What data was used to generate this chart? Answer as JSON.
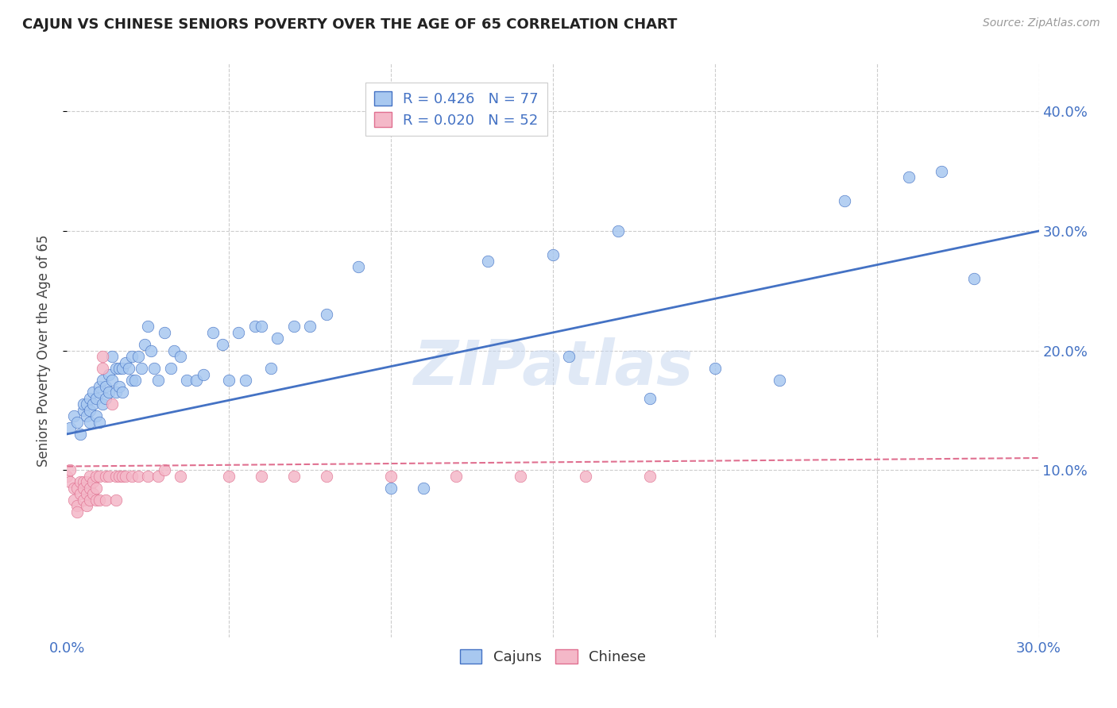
{
  "title": "CAJUN VS CHINESE SENIORS POVERTY OVER THE AGE OF 65 CORRELATION CHART",
  "source": "Source: ZipAtlas.com",
  "ylabel": "Seniors Poverty Over the Age of 65",
  "xlim": [
    0.0,
    0.3
  ],
  "ylim": [
    -0.04,
    0.44
  ],
  "cajun_R": 0.426,
  "cajun_N": 77,
  "chinese_R": 0.02,
  "chinese_N": 52,
  "cajun_color": "#a8c8f0",
  "chinese_color": "#f4b8c8",
  "cajun_line_color": "#4472c4",
  "chinese_line_color": "#e07090",
  "background_color": "#ffffff",
  "grid_color": "#cccccc",
  "watermark": "ZIPatlas",
  "watermark_color": "#c8d8f0",
  "cajun_line_start_y": 0.13,
  "cajun_line_end_y": 0.3,
  "chinese_line_start_y": 0.103,
  "chinese_line_end_y": 0.11,
  "cajun_x": [
    0.001,
    0.002,
    0.003,
    0.004,
    0.005,
    0.005,
    0.006,
    0.006,
    0.007,
    0.007,
    0.007,
    0.008,
    0.008,
    0.009,
    0.009,
    0.01,
    0.01,
    0.01,
    0.011,
    0.011,
    0.012,
    0.012,
    0.013,
    0.013,
    0.014,
    0.014,
    0.015,
    0.015,
    0.016,
    0.016,
    0.017,
    0.017,
    0.018,
    0.019,
    0.02,
    0.02,
    0.021,
    0.022,
    0.023,
    0.024,
    0.025,
    0.026,
    0.027,
    0.028,
    0.03,
    0.032,
    0.033,
    0.035,
    0.037,
    0.04,
    0.042,
    0.045,
    0.048,
    0.05,
    0.053,
    0.055,
    0.058,
    0.06,
    0.063,
    0.065,
    0.07,
    0.075,
    0.08,
    0.09,
    0.1,
    0.11,
    0.13,
    0.15,
    0.155,
    0.17,
    0.18,
    0.2,
    0.22,
    0.24,
    0.26,
    0.27,
    0.28
  ],
  "cajun_y": [
    0.135,
    0.145,
    0.14,
    0.13,
    0.15,
    0.155,
    0.155,
    0.145,
    0.16,
    0.15,
    0.14,
    0.165,
    0.155,
    0.16,
    0.145,
    0.17,
    0.165,
    0.14,
    0.175,
    0.155,
    0.17,
    0.16,
    0.18,
    0.165,
    0.195,
    0.175,
    0.185,
    0.165,
    0.185,
    0.17,
    0.185,
    0.165,
    0.19,
    0.185,
    0.195,
    0.175,
    0.175,
    0.195,
    0.185,
    0.205,
    0.22,
    0.2,
    0.185,
    0.175,
    0.215,
    0.185,
    0.2,
    0.195,
    0.175,
    0.175,
    0.18,
    0.215,
    0.205,
    0.175,
    0.215,
    0.175,
    0.22,
    0.22,
    0.185,
    0.21,
    0.22,
    0.22,
    0.23,
    0.27,
    0.085,
    0.085,
    0.275,
    0.28,
    0.195,
    0.3,
    0.16,
    0.185,
    0.175,
    0.325,
    0.345,
    0.35,
    0.26
  ],
  "chinese_x": [
    0.0,
    0.001,
    0.001,
    0.002,
    0.002,
    0.003,
    0.003,
    0.003,
    0.004,
    0.004,
    0.005,
    0.005,
    0.005,
    0.006,
    0.006,
    0.006,
    0.007,
    0.007,
    0.007,
    0.008,
    0.008,
    0.009,
    0.009,
    0.009,
    0.01,
    0.01,
    0.011,
    0.011,
    0.012,
    0.012,
    0.013,
    0.014,
    0.015,
    0.015,
    0.016,
    0.017,
    0.018,
    0.02,
    0.022,
    0.025,
    0.028,
    0.03,
    0.035,
    0.05,
    0.06,
    0.07,
    0.08,
    0.1,
    0.12,
    0.14,
    0.16,
    0.18
  ],
  "chinese_y": [
    0.095,
    0.09,
    0.1,
    0.085,
    0.075,
    0.085,
    0.07,
    0.065,
    0.09,
    0.08,
    0.09,
    0.085,
    0.075,
    0.09,
    0.08,
    0.07,
    0.095,
    0.085,
    0.075,
    0.09,
    0.08,
    0.095,
    0.085,
    0.075,
    0.095,
    0.075,
    0.195,
    0.185,
    0.095,
    0.075,
    0.095,
    0.155,
    0.095,
    0.075,
    0.095,
    0.095,
    0.095,
    0.095,
    0.095,
    0.095,
    0.095,
    0.1,
    0.095,
    0.095,
    0.095,
    0.095,
    0.095,
    0.095,
    0.095,
    0.095,
    0.095,
    0.095
  ]
}
